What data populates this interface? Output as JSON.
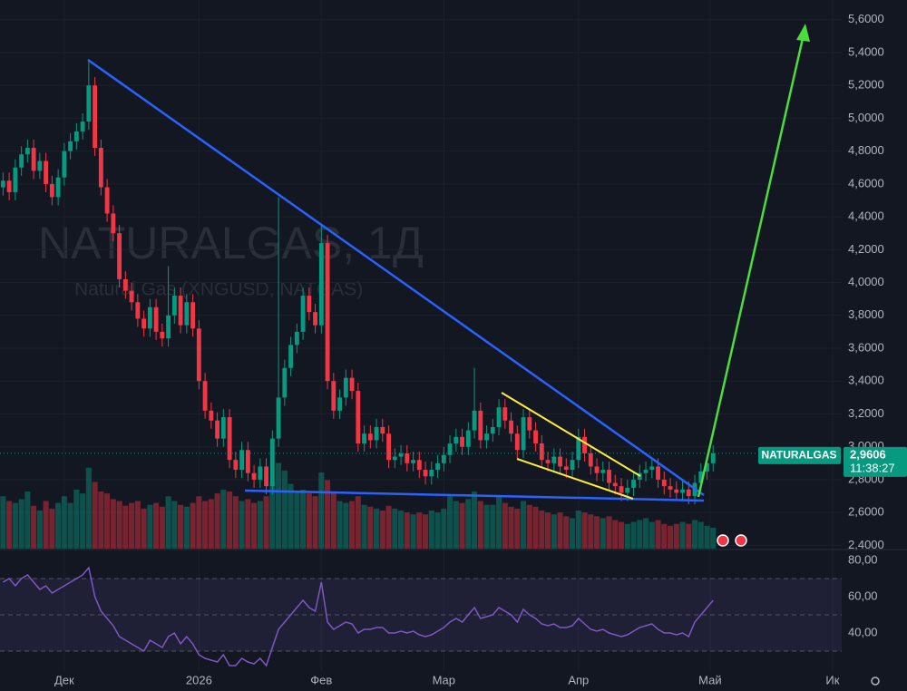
{
  "chart_data": [
    {
      "type": "candlestick",
      "title": "NATURALGAS, 1Д",
      "subtitle": "Natural Gas (XNGUSD, NATGAS)",
      "symbol_tag": "NATURALGAS",
      "last_price": {
        "value": 2.9606,
        "label": "2,9606"
      },
      "timer": "11:38:27",
      "up_color": "#089981",
      "down_color": "#f23645",
      "xlim": [
        -0.5,
        137
      ],
      "ylim": [
        2.38,
        5.72
      ],
      "xticks": [
        {
          "value": 10,
          "label": "Дек"
        },
        {
          "value": 32,
          "label": "2026"
        },
        {
          "value": 52,
          "label": "Фев"
        },
        {
          "value": 72,
          "label": "Мар"
        },
        {
          "value": 94,
          "label": "Апр"
        },
        {
          "value": 115.5,
          "label": "Май"
        },
        {
          "value": 135.5,
          "label": "Ик"
        }
      ],
      "yticks": [
        {
          "value": 2.4,
          "label": "2,4000"
        },
        {
          "value": 2.6,
          "label": "2,6000"
        },
        {
          "value": 2.8,
          "label": "2,8000"
        },
        {
          "value": 3.0,
          "label": "3,0000"
        },
        {
          "value": 3.2,
          "label": "3,2000"
        },
        {
          "value": 3.4,
          "label": "3,4000"
        },
        {
          "value": 3.6,
          "label": "3,6000"
        },
        {
          "value": 3.8,
          "label": "3,8000"
        },
        {
          "value": 4.0,
          "label": "4,0000"
        },
        {
          "value": 4.2,
          "label": "4,2000"
        },
        {
          "value": 4.4,
          "label": "4,4000"
        },
        {
          "value": 4.6,
          "label": "4,6000"
        },
        {
          "value": 4.8,
          "label": "4,8000"
        },
        {
          "value": 5.0,
          "label": "5,0000"
        },
        {
          "value": 5.2,
          "label": "5,2000"
        },
        {
          "value": 5.4,
          "label": "5,4000"
        },
        {
          "value": 5.6,
          "label": "5,6000"
        }
      ],
      "grid": true,
      "open": [
        4.58,
        4.62,
        4.55,
        4.7,
        4.78,
        4.82,
        4.68,
        4.74,
        4.6,
        4.52,
        4.64,
        4.8,
        4.86,
        4.92,
        4.98,
        5.2,
        4.82,
        4.58,
        4.42,
        4.3,
        4.02,
        3.95,
        3.88,
        3.78,
        3.72,
        3.85,
        3.7,
        3.66,
        3.8,
        3.92,
        3.74,
        3.88,
        3.72,
        3.4,
        3.22,
        3.16,
        3.05,
        3.18,
        2.92,
        2.86,
        2.98,
        2.84,
        2.8,
        2.88,
        2.76,
        3.05,
        3.3,
        3.48,
        3.62,
        3.7,
        3.92,
        3.82,
        3.74,
        4.24,
        3.4,
        3.22,
        3.3,
        3.42,
        3.34,
        3.02,
        3.08,
        3.04,
        3.12,
        3.08,
        2.92,
        2.94,
        2.96,
        2.9,
        2.92,
        2.86,
        2.82,
        2.86,
        2.9,
        2.95,
        3.02,
        3.06,
        3.0,
        3.1,
        3.22,
        3.04,
        3.08,
        3.12,
        3.24,
        3.16,
        3.08,
        2.98,
        3.18,
        3.1,
        3.02,
        2.92,
        2.9,
        2.94,
        2.88,
        2.86,
        2.92,
        3.06,
        2.96,
        2.88,
        2.84,
        2.86,
        2.78,
        2.76,
        2.72,
        2.75,
        2.8,
        2.84,
        2.86,
        2.88,
        2.8,
        2.76,
        2.74,
        2.72,
        2.74,
        2.7,
        2.78,
        2.85,
        2.9
      ],
      "high": [
        4.67,
        4.67,
        4.75,
        4.83,
        4.87,
        4.87,
        4.79,
        4.79,
        4.65,
        4.69,
        4.85,
        4.91,
        4.97,
        5.03,
        5.36,
        5.25,
        4.87,
        4.63,
        4.47,
        4.35,
        4.07,
        4.0,
        3.93,
        3.83,
        3.9,
        3.9,
        3.75,
        4.1,
        3.97,
        3.97,
        3.93,
        3.93,
        3.77,
        3.45,
        3.27,
        3.21,
        3.23,
        3.23,
        2.97,
        3.03,
        3.03,
        2.89,
        2.93,
        2.93,
        3.1,
        4.52,
        3.53,
        3.67,
        3.75,
        3.97,
        3.97,
        3.87,
        4.36,
        4.29,
        3.45,
        3.35,
        3.47,
        3.47,
        3.39,
        3.13,
        3.13,
        3.17,
        3.17,
        3.13,
        2.99,
        3.01,
        3.01,
        2.97,
        2.97,
        2.91,
        2.91,
        2.95,
        3.0,
        3.07,
        3.11,
        3.11,
        3.15,
        3.48,
        3.27,
        3.13,
        3.17,
        3.29,
        3.29,
        3.21,
        3.13,
        3.23,
        3.23,
        3.15,
        3.07,
        2.97,
        2.99,
        2.99,
        2.93,
        2.97,
        3.11,
        3.11,
        3.01,
        2.93,
        2.91,
        2.91,
        2.83,
        2.81,
        2.8,
        2.85,
        2.89,
        2.91,
        2.93,
        2.93,
        2.85,
        2.81,
        2.79,
        2.79,
        2.79,
        2.83,
        2.9,
        2.95,
        3.01
      ],
      "low": [
        4.53,
        4.5,
        4.5,
        4.65,
        4.73,
        4.63,
        4.63,
        4.55,
        4.47,
        4.47,
        4.59,
        4.75,
        4.81,
        4.87,
        4.93,
        4.77,
        4.53,
        4.37,
        4.25,
        3.97,
        3.9,
        3.83,
        3.73,
        3.67,
        3.67,
        3.65,
        3.61,
        3.61,
        3.75,
        3.69,
        3.69,
        3.67,
        3.35,
        3.17,
        3.11,
        3.0,
        3.0,
        2.87,
        2.81,
        2.81,
        2.79,
        2.75,
        2.75,
        2.71,
        2.71,
        3.0,
        3.25,
        3.43,
        3.57,
        3.65,
        3.77,
        3.69,
        3.69,
        3.35,
        3.17,
        3.17,
        3.25,
        3.29,
        2.97,
        2.97,
        2.99,
        2.99,
        3.03,
        2.87,
        2.87,
        2.89,
        2.85,
        2.85,
        2.81,
        2.77,
        2.77,
        2.81,
        2.85,
        2.9,
        2.97,
        2.95,
        2.95,
        3.05,
        2.99,
        2.99,
        3.03,
        3.07,
        3.11,
        3.03,
        2.93,
        2.93,
        3.05,
        2.97,
        2.87,
        2.85,
        2.85,
        2.83,
        2.81,
        2.81,
        2.87,
        2.91,
        2.83,
        2.79,
        2.79,
        2.73,
        2.71,
        2.67,
        2.67,
        2.7,
        2.75,
        2.79,
        2.81,
        2.75,
        2.71,
        2.69,
        2.67,
        2.67,
        2.65,
        2.65,
        2.73,
        2.8,
        2.85
      ],
      "close": [
        4.62,
        4.55,
        4.7,
        4.78,
        4.82,
        4.68,
        4.74,
        4.6,
        4.52,
        4.64,
        4.8,
        4.86,
        4.92,
        4.98,
        5.2,
        4.82,
        4.58,
        4.42,
        4.3,
        4.02,
        3.95,
        3.88,
        3.78,
        3.72,
        3.85,
        3.7,
        3.66,
        3.8,
        3.92,
        3.74,
        3.88,
        3.72,
        3.4,
        3.22,
        3.16,
        3.05,
        3.18,
        2.92,
        2.86,
        2.98,
        2.84,
        2.8,
        2.88,
        2.76,
        3.05,
        3.3,
        3.48,
        3.62,
        3.7,
        3.92,
        3.82,
        3.74,
        4.24,
        3.4,
        3.22,
        3.3,
        3.42,
        3.34,
        3.02,
        3.08,
        3.04,
        3.12,
        3.08,
        2.92,
        2.94,
        2.96,
        2.9,
        2.92,
        2.86,
        2.82,
        2.86,
        2.9,
        2.95,
        3.02,
        3.06,
        3.0,
        3.1,
        3.22,
        3.04,
        3.08,
        3.12,
        3.24,
        3.16,
        3.08,
        2.98,
        3.18,
        3.1,
        3.02,
        2.92,
        2.9,
        2.94,
        2.88,
        2.86,
        2.92,
        3.06,
        2.96,
        2.88,
        2.84,
        2.86,
        2.78,
        2.76,
        2.72,
        2.75,
        2.8,
        2.84,
        2.86,
        2.88,
        2.8,
        2.76,
        2.74,
        2.72,
        2.74,
        2.7,
        2.78,
        2.85,
        2.9,
        2.9606
      ],
      "volume": {
        "ylim": [
          0,
          100
        ],
        "values": [
          55,
          50,
          48,
          52,
          60,
          45,
          40,
          50,
          42,
          48,
          55,
          48,
          62,
          58,
          85,
          70,
          60,
          58,
          52,
          50,
          45,
          48,
          50,
          42,
          46,
          48,
          44,
          55,
          50,
          46,
          44,
          48,
          55,
          50,
          52,
          58,
          62,
          60,
          55,
          50,
          52,
          48,
          50,
          55,
          70,
          90,
          82,
          68,
          60,
          62,
          58,
          55,
          80,
          72,
          60,
          50,
          48,
          50,
          55,
          46,
          44,
          42,
          40,
          45,
          42,
          40,
          38,
          36,
          38,
          36,
          40,
          38,
          42,
          55,
          50,
          48,
          52,
          60,
          50,
          46,
          46,
          55,
          48,
          44,
          42,
          50,
          46,
          44,
          40,
          38,
          36,
          38,
          34,
          32,
          40,
          38,
          36,
          34,
          32,
          34,
          30,
          28,
          26,
          28,
          30,
          32,
          28,
          30,
          26,
          24,
          26,
          28,
          26,
          30,
          28,
          24,
          22
        ]
      }
    },
    {
      "type": "line",
      "color": "#7e57c2",
      "ylim": [
        19,
        85.5
      ],
      "levels": [
        30,
        50,
        70
      ],
      "yticks": [
        {
          "value": 80,
          "label": "80,00"
        },
        {
          "value": 60,
          "label": "60,00"
        },
        {
          "value": 40,
          "label": "40,00"
        }
      ],
      "values": [
        68,
        70,
        66,
        70,
        72,
        68,
        64,
        66,
        62,
        64,
        66,
        68,
        70,
        72,
        76,
        60,
        52,
        48,
        44,
        38,
        36,
        34,
        32,
        30,
        36,
        34,
        32,
        38,
        40,
        34,
        38,
        34,
        28,
        26,
        25,
        24,
        28,
        22,
        22,
        26,
        24,
        23,
        26,
        22,
        32,
        42,
        46,
        50,
        54,
        58,
        54,
        52,
        68,
        46,
        42,
        44,
        46,
        45,
        40,
        42,
        42,
        43,
        43,
        40,
        40,
        41,
        40,
        41,
        39,
        38,
        39,
        41,
        43,
        46,
        48,
        46,
        50,
        54,
        48,
        49,
        50,
        54,
        52,
        50,
        46,
        53,
        50,
        48,
        45,
        44,
        45,
        43,
        43,
        44,
        48,
        45,
        42,
        41,
        42,
        40,
        39,
        38,
        39,
        41,
        43,
        44,
        45,
        42,
        40,
        40,
        39,
        40,
        38,
        46,
        50,
        54,
        58
      ]
    }
  ]
}
